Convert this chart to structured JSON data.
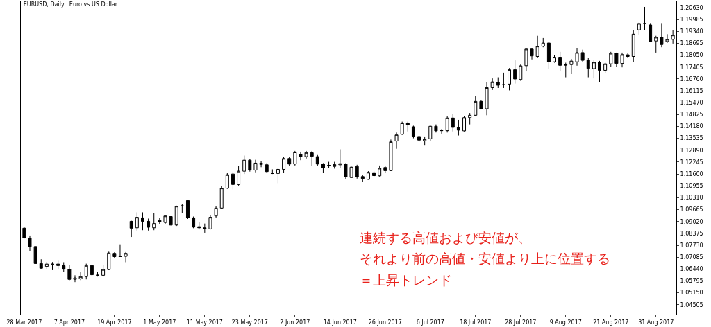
{
  "chart_data": {
    "type": "candlestick",
    "title": "EURUSD, Daily:  Euro vs US Dollar",
    "color": "#000000",
    "categories": [
      "28 Mar 2017",
      null,
      null,
      null,
      null,
      null,
      null,
      null,
      "7 Apr 2017",
      null,
      null,
      null,
      null,
      null,
      null,
      null,
      "19 Apr 2017",
      null,
      null,
      null,
      null,
      null,
      null,
      null,
      "1 May 2017",
      null,
      null,
      null,
      null,
      null,
      null,
      null,
      "11 May 2017",
      null,
      null,
      null,
      null,
      null,
      null,
      null,
      "23 May 2017",
      null,
      null,
      null,
      null,
      null,
      null,
      null,
      "2 Jun 2017",
      null,
      null,
      null,
      null,
      null,
      null,
      null,
      "14 Jun 2017",
      null,
      null,
      null,
      null,
      null,
      null,
      null,
      "26 Jun 2017",
      null,
      null,
      null,
      null,
      null,
      null,
      null,
      "6 Jul 2017",
      null,
      null,
      null,
      null,
      null,
      null,
      null,
      "18 Jul 2017",
      null,
      null,
      null,
      null,
      null,
      null,
      null,
      "28 Jul 2017",
      null,
      null,
      null,
      null,
      null,
      null,
      null,
      "9 Aug 2017",
      null,
      null,
      null,
      null,
      null,
      null,
      null,
      "21 Aug 2017",
      null,
      null,
      null,
      null,
      null,
      null,
      null,
      "31 Aug 2017",
      null,
      null,
      null
    ],
    "ohlc": [
      [
        1.0866,
        1.0873,
        1.081,
        1.0813
      ],
      [
        1.0812,
        1.0826,
        1.0741,
        1.0766
      ],
      [
        1.0766,
        1.0768,
        1.0672,
        1.0674
      ],
      [
        1.0674,
        1.0697,
        1.0647,
        1.0648
      ],
      [
        1.0658,
        1.0683,
        1.0643,
        1.0671
      ],
      [
        1.0667,
        1.0682,
        1.0638,
        1.0671
      ],
      [
        1.0671,
        1.0689,
        1.0641,
        1.0663
      ],
      [
        1.0662,
        1.0681,
        1.063,
        1.0643
      ],
      [
        1.0643,
        1.0665,
        1.0583,
        1.0588
      ],
      [
        1.0588,
        1.061,
        1.0573,
        1.0596
      ],
      [
        1.0591,
        1.0628,
        1.0584,
        1.0603
      ],
      [
        1.0603,
        1.0673,
        1.0588,
        1.0663
      ],
      [
        1.0663,
        1.0668,
        1.061,
        1.0613
      ],
      [
        1.061,
        1.0628,
        1.0603,
        1.0611
      ],
      [
        1.061,
        1.0668,
        1.0603,
        1.0641
      ],
      [
        1.0641,
        1.0738,
        1.0638,
        1.0731
      ],
      [
        1.0729,
        1.0735,
        1.0703,
        1.0711
      ],
      [
        1.0713,
        1.0778,
        1.0711,
        1.0712
      ],
      [
        1.0713,
        1.0736,
        1.0681,
        1.0729
      ],
      [
        1.0903,
        1.0906,
        1.0818,
        1.0866
      ],
      [
        1.0868,
        1.0952,
        1.0853,
        1.0925
      ],
      [
        1.0922,
        1.0952,
        1.0855,
        1.0903
      ],
      [
        1.0903,
        1.0918,
        1.0853,
        1.0871
      ],
      [
        1.0868,
        1.0947,
        1.0855,
        1.0891
      ],
      [
        1.0908,
        1.0922,
        1.0888,
        1.09
      ],
      [
        1.0897,
        1.0936,
        1.0888,
        1.0932
      ],
      [
        1.0929,
        1.0931,
        1.0881,
        1.0883
      ],
      [
        1.0883,
        1.0988,
        1.0878,
        1.0985
      ],
      [
        1.0986,
        1.0997,
        1.0947,
        1.0987
      ],
      [
        1.1016,
        1.1018,
        1.0916,
        1.0922
      ],
      [
        1.0922,
        1.0929,
        1.0866,
        1.0872
      ],
      [
        1.0874,
        1.0897,
        1.0859,
        1.0868
      ],
      [
        1.0868,
        1.0891,
        1.0841,
        1.0864
      ],
      [
        1.0862,
        1.0936,
        1.0859,
        1.0925
      ],
      [
        1.0932,
        1.0987,
        1.0922,
        1.0975
      ],
      [
        1.0975,
        1.1095,
        1.0972,
        1.1083
      ],
      [
        1.1083,
        1.1167,
        1.1079,
        1.1156
      ],
      [
        1.116,
        1.1173,
        1.1076,
        1.1103
      ],
      [
        1.1103,
        1.1204,
        1.1097,
        1.1175
      ],
      [
        1.1175,
        1.126,
        1.116,
        1.1235
      ],
      [
        1.1235,
        1.1241,
        1.1173,
        1.1181
      ],
      [
        1.1181,
        1.1237,
        1.1169,
        1.1219
      ],
      [
        1.1219,
        1.1231,
        1.1197,
        1.1212
      ],
      [
        1.121,
        1.1219,
        1.1167,
        1.1173
      ],
      [
        1.1164,
        1.1185,
        1.116,
        1.1163
      ],
      [
        1.1163,
        1.1193,
        1.111,
        1.1185
      ],
      [
        1.1185,
        1.1254,
        1.1167,
        1.1244
      ],
      [
        1.1244,
        1.1254,
        1.1204,
        1.1214
      ],
      [
        1.1214,
        1.1285,
        1.1206,
        1.1279
      ],
      [
        1.1266,
        1.1281,
        1.1235,
        1.1254
      ],
      [
        1.1254,
        1.1285,
        1.1244,
        1.1276
      ],
      [
        1.1275,
        1.1285,
        1.1204,
        1.1256
      ],
      [
        1.1254,
        1.1263,
        1.1204,
        1.1214
      ],
      [
        1.1214,
        1.1219,
        1.1167,
        1.1193
      ],
      [
        1.1206,
        1.1226,
        1.1191,
        1.1207
      ],
      [
        1.1201,
        1.1226,
        1.1189,
        1.1211
      ],
      [
        1.121,
        1.1294,
        1.1191,
        1.1216
      ],
      [
        1.1214,
        1.1219,
        1.1131,
        1.1144
      ],
      [
        1.1141,
        1.12,
        1.1139,
        1.1197
      ],
      [
        1.1201,
        1.121,
        1.1135,
        1.1144
      ],
      [
        1.1146,
        1.1154,
        1.1118,
        1.1135
      ],
      [
        1.1131,
        1.1175,
        1.1129,
        1.1169
      ],
      [
        1.1167,
        1.1176,
        1.1144,
        1.1151
      ],
      [
        1.115,
        1.1206,
        1.1146,
        1.1191
      ],
      [
        1.1195,
        1.1204,
        1.1167,
        1.1178
      ],
      [
        1.1178,
        1.1347,
        1.1176,
        1.1335
      ],
      [
        1.1339,
        1.1385,
        1.1297,
        1.1372
      ],
      [
        1.1376,
        1.1444,
        1.1372,
        1.1437
      ],
      [
        1.1437,
        1.1444,
        1.1391,
        1.1426
      ],
      [
        1.1416,
        1.1422,
        1.1354,
        1.1362
      ],
      [
        1.136,
        1.1366,
        1.1335,
        1.1344
      ],
      [
        1.1341,
        1.136,
        1.1314,
        1.135
      ],
      [
        1.1351,
        1.1422,
        1.1339,
        1.1419
      ],
      [
        1.1419,
        1.1429,
        1.1385,
        1.1394
      ],
      [
        1.1395,
        1.1404,
        1.1379,
        1.1396
      ],
      [
        1.1395,
        1.1473,
        1.1385,
        1.1464
      ],
      [
        1.1464,
        1.1485,
        1.1391,
        1.1413
      ],
      [
        1.1413,
        1.1454,
        1.1369,
        1.1398
      ],
      [
        1.1394,
        1.1473,
        1.1391,
        1.1466
      ],
      [
        1.1466,
        1.1491,
        1.1429,
        1.1479
      ],
      [
        1.1479,
        1.1585,
        1.1473,
        1.1554
      ],
      [
        1.1554,
        1.156,
        1.151,
        1.1514
      ],
      [
        1.1514,
        1.166,
        1.1479,
        1.1629
      ],
      [
        1.1629,
        1.1679,
        1.1616,
        1.166
      ],
      [
        1.1657,
        1.1685,
        1.1627,
        1.1642
      ],
      [
        1.1644,
        1.171,
        1.1627,
        1.1645
      ],
      [
        1.1648,
        1.1735,
        1.1614,
        1.1726
      ],
      [
        1.1726,
        1.1777,
        1.1651,
        1.1676
      ],
      [
        1.1673,
        1.1754,
        1.1666,
        1.1747
      ],
      [
        1.1748,
        1.1844,
        1.1717,
        1.1838
      ],
      [
        1.1838,
        1.1844,
        1.1782,
        1.1801
      ],
      [
        1.1798,
        1.191,
        1.1792,
        1.1854
      ],
      [
        1.1854,
        1.1898,
        1.1848,
        1.1871
      ],
      [
        1.1871,
        1.1875,
        1.1729,
        1.1769
      ],
      [
        1.1769,
        1.1804,
        1.1764,
        1.1794
      ],
      [
        1.1794,
        1.1823,
        1.1717,
        1.175
      ],
      [
        1.1751,
        1.1764,
        1.1685,
        1.1752
      ],
      [
        1.1754,
        1.1785,
        1.1702,
        1.1773
      ],
      [
        1.1769,
        1.1844,
        1.1748,
        1.1819
      ],
      [
        1.1819,
        1.1835,
        1.1769,
        1.1777
      ],
      [
        1.1779,
        1.1789,
        1.1685,
        1.1733
      ],
      [
        1.1732,
        1.1777,
        1.1679,
        1.1767
      ],
      [
        1.1767,
        1.1774,
        1.166,
        1.1723
      ],
      [
        1.1723,
        1.1764,
        1.1706,
        1.1758
      ],
      [
        1.1758,
        1.1823,
        1.1741,
        1.1815
      ],
      [
        1.1815,
        1.1819,
        1.1741,
        1.176
      ],
      [
        1.176,
        1.1819,
        1.1739,
        1.1808
      ],
      [
        1.1807,
        1.1815,
        1.1792,
        1.1798
      ],
      [
        1.1798,
        1.1942,
        1.1769,
        1.1919
      ],
      [
        1.1942,
        1.1982,
        1.1917,
        1.1977
      ],
      [
        1.1977,
        1.2067,
        1.1942,
        1.1976
      ],
      [
        1.1969,
        1.1979,
        1.1876,
        1.1879
      ],
      [
        1.1882,
        1.191,
        1.1819,
        1.1902
      ],
      [
        1.1902,
        1.1979,
        1.1848,
        1.1863
      ],
      [
        1.1879,
        1.1919,
        1.1872,
        1.1891
      ],
      [
        1.1891,
        1.1939,
        1.1868,
        1.1914
      ]
    ],
    "ylim": [
      1.0397,
      1.2097
    ],
    "yticks": [
      {
        "value": 1.2063,
        "label": "1.20630"
      },
      {
        "value": 1.19985,
        "label": "1.19985"
      },
      {
        "value": 1.1934,
        "label": "1.19340"
      },
      {
        "value": 1.18695,
        "label": "1.18695"
      },
      {
        "value": 1.1805,
        "label": "1.18050"
      },
      {
        "value": 1.17405,
        "label": "1.17405"
      },
      {
        "value": 1.1676,
        "label": "1.16760"
      },
      {
        "value": 1.16115,
        "label": "1.16115"
      },
      {
        "value": 1.1547,
        "label": "1.15470"
      },
      {
        "value": 1.14825,
        "label": "1.14825"
      },
      {
        "value": 1.1418,
        "label": "1.14180"
      },
      {
        "value": 1.13535,
        "label": "1.13535"
      },
      {
        "value": 1.1289,
        "label": "1.12890"
      },
      {
        "value": 1.12245,
        "label": "1.12245"
      },
      {
        "value": 1.116,
        "label": "1.11600"
      },
      {
        "value": 1.10955,
        "label": "1.10955"
      },
      {
        "value": 1.1031,
        "label": "1.10310"
      },
      {
        "value": 1.09665,
        "label": "1.09665"
      },
      {
        "value": 1.0902,
        "label": "1.09020"
      },
      {
        "value": 1.08375,
        "label": "1.08375"
      },
      {
        "value": 1.0773,
        "label": "1.07730"
      },
      {
        "value": 1.07085,
        "label": "1.07085"
      },
      {
        "value": 1.0644,
        "label": "1.06440"
      },
      {
        "value": 1.05795,
        "label": "1.05795"
      },
      {
        "value": 1.0515,
        "label": "1.05150"
      },
      {
        "value": 1.04505,
        "label": "1.04505"
      }
    ],
    "legend": false,
    "annotations": [
      "連続する高値および安値が、",
      "それより前の高値・安値より上に位置する",
      "＝上昇トレンド"
    ]
  }
}
